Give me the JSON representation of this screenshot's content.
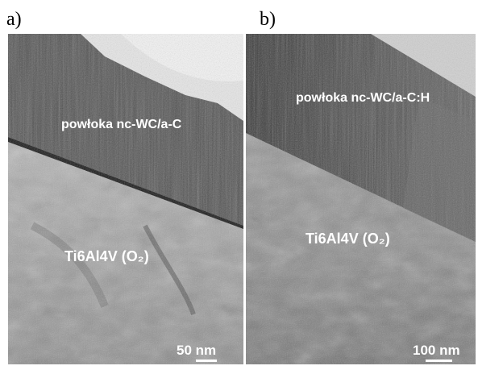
{
  "panels": [
    {
      "label": "a)",
      "coating_label": "powłoka nc-WC/a-C",
      "substrate_label": "Ti6Al4V (O₂)",
      "scale_bar": "50 nm"
    },
    {
      "label": "b)",
      "coating_label": "powłoka nc-WC/a-C:H",
      "substrate_label": "Ti6Al4V (O₂)",
      "scale_bar": "100 nm"
    }
  ]
}
